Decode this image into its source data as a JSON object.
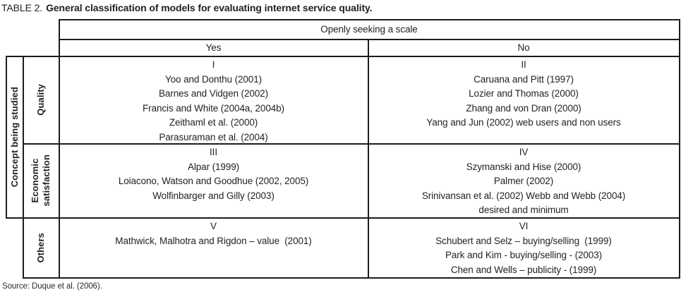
{
  "colors": {
    "text": "#231f20",
    "rule": "#1d1d1d",
    "background": "#ffffff"
  },
  "title": {
    "label": "TABLE 2.",
    "text": "General classification of models for evaluating internet service quality."
  },
  "table": {
    "col_header": {
      "span_label": "Openly seeking a scale",
      "yes_label": "Yes",
      "no_label": "No"
    },
    "row_header": {
      "axis_label": "Concept being studied"
    },
    "rows": [
      {
        "label_lines": [
          "Quality"
        ],
        "yes": {
          "numeral": "I",
          "entries": [
            "Yoo and Donthu (2001)",
            "Barnes and Vidgen (2002)",
            "Francis and White (2004a, 2004b)",
            "Zeithaml et al. (2000)",
            "Parasuraman et al. (2004)"
          ]
        },
        "no": {
          "numeral": "II",
          "entries": [
            "Caruana and Pitt (1997)",
            "Lozier and Thomas (2000)",
            "Zhang and von Dran (2000)",
            "Yang and Jun (2002) web users and non users"
          ]
        }
      },
      {
        "label_lines": [
          "Economic",
          "satisfaction"
        ],
        "yes": {
          "numeral": "III",
          "entries": [
            "Alpar (1999)",
            "Loiacono, Watson and Goodhue (2002, 2005)",
            "Wolfinbarger and Gilly (2003)"
          ]
        },
        "no": {
          "numeral": "IV",
          "entries": [
            "Szymanski and Hise (2000)",
            "Palmer (2002)",
            "Srinivansan et al. (2002) Webb and Webb (2004)",
            "desired and minimum"
          ]
        }
      },
      {
        "label_lines": [
          "Others"
        ],
        "yes": {
          "numeral": "V",
          "entries": [
            "Mathwick, Malhotra and Rigdon – value  (2001)"
          ]
        },
        "no": {
          "numeral": "VI",
          "entries": [
            "Schubert and Selz – buying/selling  (1999)",
            "Park and Kim - buying/selling - (2003)",
            "Chen and Wells – publicity - (1999)"
          ]
        }
      }
    ]
  },
  "source": "Source: Duque et al. (2006)."
}
